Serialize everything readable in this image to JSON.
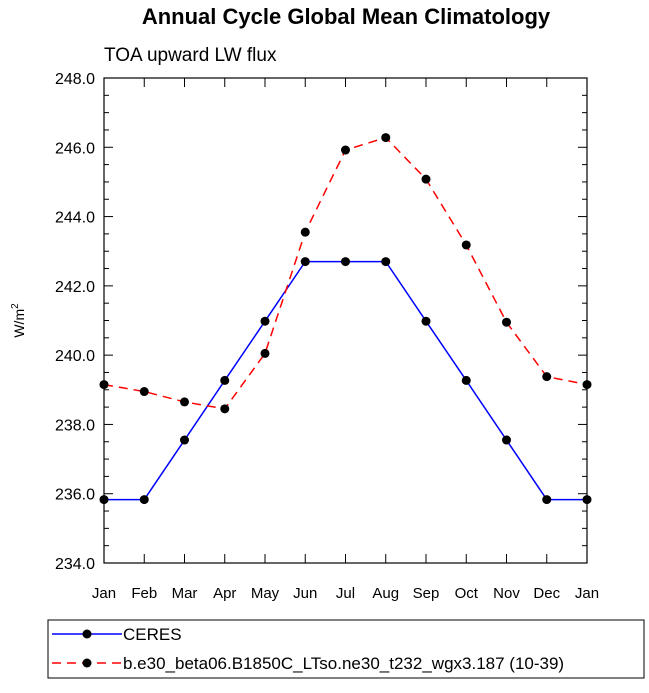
{
  "chart_data": {
    "type": "line",
    "title": "Annual Cycle Global Mean Climatology",
    "subtitle": "TOA upward LW flux",
    "ylabel": "W/m",
    "ylabel_superscript": "2",
    "xlabel": "",
    "categories": [
      "Jan",
      "Feb",
      "Mar",
      "Apr",
      "May",
      "Jun",
      "Jul",
      "Aug",
      "Sep",
      "Oct",
      "Nov",
      "Dec",
      "Jan"
    ],
    "ylim": [
      234.0,
      248.0
    ],
    "yticks": [
      "234.0",
      "236.0",
      "238.0",
      "240.0",
      "242.0",
      "244.0",
      "246.0",
      "248.0"
    ],
    "grid": false,
    "legend_position": "bottom",
    "series": [
      {
        "name": "CERES",
        "color": "#0000ff",
        "line_style": "solid",
        "marker": "circle",
        "values": [
          235.83,
          235.83,
          237.55,
          239.27,
          240.98,
          242.7,
          242.7,
          242.7,
          240.98,
          239.27,
          237.55,
          235.83,
          235.83
        ]
      },
      {
        "name": "b.e30_beta06.B1850C_LTso.ne30_t232_wgx3.187 (10-39)",
        "color": "#ff0000",
        "line_style": "dashed",
        "marker": "circle",
        "values": [
          239.15,
          238.95,
          238.65,
          238.45,
          240.05,
          243.55,
          245.92,
          246.28,
          245.08,
          243.18,
          240.95,
          239.38,
          239.15
        ]
      }
    ]
  }
}
